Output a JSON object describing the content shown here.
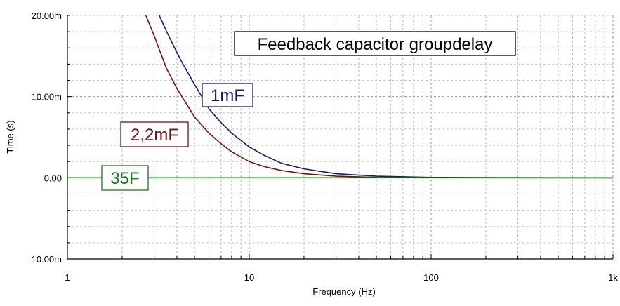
{
  "chart_data": {
    "type": "line",
    "title": "Feedback capacitor groupdelay",
    "xlabel": "Frequency (Hz)",
    "ylabel": "Time (s)",
    "xscale": "log",
    "xlim": [
      1,
      1000
    ],
    "ylim": [
      -0.01,
      0.02
    ],
    "grid": true,
    "x_ticks": [
      {
        "value": 1,
        "label": "1"
      },
      {
        "value": 10,
        "label": "10"
      },
      {
        "value": 100,
        "label": "100"
      },
      {
        "value": 1000,
        "label": "1k"
      }
    ],
    "y_ticks": [
      {
        "value": 0.02,
        "label": "20.00m"
      },
      {
        "value": 0.01,
        "label": "10.00m"
      },
      {
        "value": 0,
        "label": "0.00"
      },
      {
        "value": -0.01,
        "label": "-10.00m"
      }
    ],
    "series": [
      {
        "name": "1mF",
        "color": "#1a1a6e",
        "x": [
          3.2,
          3.6,
          4.2,
          5,
          6,
          7,
          8,
          10,
          12,
          15,
          20,
          30,
          50,
          100,
          200,
          1000
        ],
        "y": [
          0.02,
          0.0175,
          0.0145,
          0.0115,
          0.0085,
          0.0068,
          0.0055,
          0.0038,
          0.0028,
          0.0018,
          0.0011,
          0.0005,
          0.0002,
          5e-05,
          2e-05,
          0
        ]
      },
      {
        "name": "2,2mF",
        "color": "#7a1010",
        "x": [
          2.7,
          3,
          3.5,
          4,
          5,
          6,
          7,
          8,
          10,
          12,
          15,
          20,
          30,
          50,
          100,
          1000
        ],
        "y": [
          0.02,
          0.0175,
          0.0135,
          0.011,
          0.0075,
          0.0055,
          0.0042,
          0.0032,
          0.002,
          0.0014,
          0.0009,
          0.0005,
          0.0002,
          5e-05,
          1e-05,
          0
        ]
      },
      {
        "name": "35F",
        "color": "#1a7a1a",
        "x": [
          1,
          1000
        ],
        "y": [
          0,
          0
        ]
      }
    ]
  }
}
